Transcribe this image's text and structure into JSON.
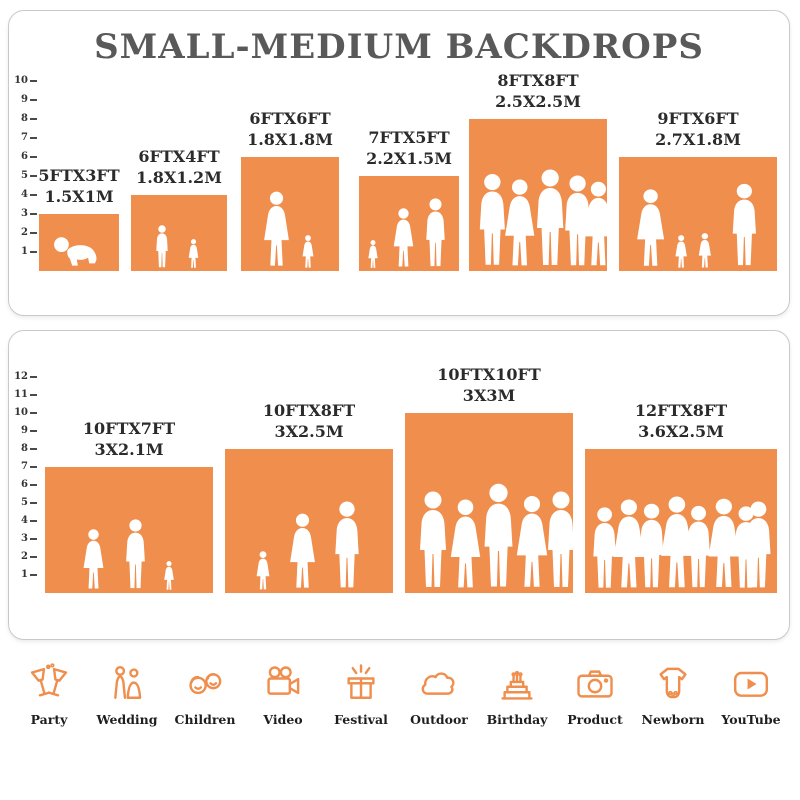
{
  "title": "SMALL-MEDIUM BACKDROPS",
  "colors": {
    "accent": "#EF8E4D",
    "title_gray": "#595959",
    "text_dark": "#2B2B2B"
  },
  "chart_data": [
    {
      "type": "bar",
      "title": "SMALL-MEDIUM BACKDROPS",
      "xlabel": "",
      "ylabel": "height (ft)",
      "ylim": [
        0,
        10
      ],
      "grid": false,
      "legend": false,
      "axis_ticks": [
        1,
        2,
        3,
        4,
        5,
        6,
        7,
        8,
        9,
        10
      ],
      "categories": [
        "5FTX3FT",
        "6FTX4FT",
        "6FTX6FT",
        "7FTX5FT",
        "8FTX8FT",
        "9FTX6FT"
      ],
      "values": [
        3,
        4,
        6,
        5,
        8,
        6
      ],
      "metric_labels": [
        "1.5X1M",
        "1.8X1.2M",
        "1.8X1.8M",
        "2.2X1.5M",
        "2.5X2.5M",
        "2.7X1.8M"
      ],
      "bar_color": "#EF8E4D"
    },
    {
      "type": "bar",
      "title": "",
      "xlabel": "",
      "ylabel": "height (ft)",
      "ylim": [
        0,
        12
      ],
      "grid": false,
      "legend": false,
      "axis_ticks": [
        1,
        2,
        3,
        4,
        5,
        6,
        7,
        8,
        9,
        10,
        11,
        12
      ],
      "categories": [
        "10FTX7FT",
        "10FTX8FT",
        "10FTX10FT",
        "12FTX8FT"
      ],
      "values": [
        7,
        8,
        10,
        8
      ],
      "metric_labels": [
        "3X2.1M",
        "3X2.5M",
        "3X3M",
        "3.6X2.5M"
      ],
      "bar_color": "#EF8E4D"
    }
  ],
  "footer": {
    "items": [
      {
        "icon": "party-icon",
        "label": "Party"
      },
      {
        "icon": "wedding-icon",
        "label": "Wedding"
      },
      {
        "icon": "children-icon",
        "label": "Children"
      },
      {
        "icon": "video-icon",
        "label": "Video"
      },
      {
        "icon": "festival-icon",
        "label": "Festival"
      },
      {
        "icon": "outdoor-icon",
        "label": "Outdoor"
      },
      {
        "icon": "birthday-icon",
        "label": "Birthday"
      },
      {
        "icon": "product-icon",
        "label": "Product"
      },
      {
        "icon": "newborn-icon",
        "label": "Newborn"
      },
      {
        "icon": "youtube-icon",
        "label": "YouTube"
      }
    ]
  }
}
